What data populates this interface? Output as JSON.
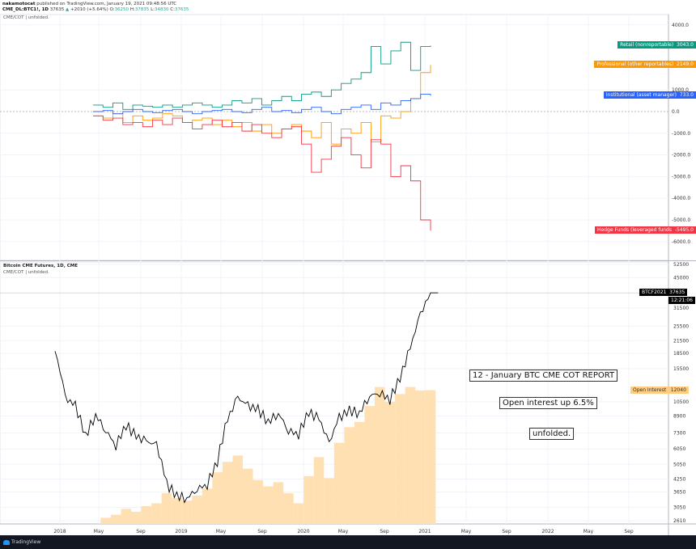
{
  "header": {
    "author": "nakamotocat",
    "published": "published on TradingView.com, January 19, 2021 09:48:56 UTC",
    "symbol": "CME_DL:BTC1!, 1D",
    "last": "37635",
    "change": "+2010 (+5.64%)",
    "o_label": "O:",
    "o": "36250",
    "h_label": "H:",
    "h": "37835",
    "l_label": "L:",
    "l": "34830",
    "c_label": "C:",
    "c": "37635"
  },
  "pane1": {
    "title": "CME/COT | unfolded.",
    "axis_ticks": [
      "4000.0",
      "1000.0",
      "0.0",
      "-1000.0",
      "-2000.0",
      "-3000.0",
      "-4000.0",
      "-5000.0",
      "-6000.0"
    ]
  },
  "pane2": {
    "title": "Bitcoin CME Futures, 1D, CME",
    "subtitle": "CME/COT | unfolded.",
    "axis_ticks": [
      "52500",
      "45000",
      "31500",
      "25500",
      "21500",
      "18500",
      "15500",
      "10500",
      "8900",
      "7300",
      "6050",
      "5050",
      "4250",
      "3650",
      "3050",
      "2610"
    ],
    "price_label": {
      "name": "BTCF2021",
      "value": "37635",
      "countdown": "12:21:06"
    },
    "oi_label": {
      "name": "Open Interest",
      "value": "12040"
    }
  },
  "notes": [
    "12 - January BTC CME COT REPORT",
    "Open interest up 6.5%",
    "unfolded."
  ],
  "x_ticks": [
    "2018",
    "May",
    "Sep",
    "2019",
    "May",
    "Sep",
    "2020",
    "May",
    "Sep",
    "2021",
    "May",
    "Sep",
    "2022",
    "May",
    "Sep"
  ],
  "footer": {
    "brand": "TradingView"
  },
  "chart_data": [
    {
      "type": "line",
      "title": "CME/COT",
      "x_start": "2018-03",
      "x_step": "1 month",
      "ylim": [
        -6500,
        4500
      ],
      "series": [
        {
          "name": "Retail (nonreportable)",
          "label_value": "3043.0",
          "color": "#089981",
          "values": [
            300,
            200,
            400,
            100,
            300,
            250,
            200,
            300,
            200,
            300,
            400,
            300,
            200,
            300,
            500,
            400,
            600,
            300,
            500,
            700,
            500,
            800,
            900,
            700,
            1000,
            1300,
            1500,
            1800,
            3000,
            2200,
            2800,
            3200,
            1900,
            3000,
            3043
          ]
        },
        {
          "name": "Professional (other reportables)",
          "label_value": "2149.0",
          "color": "#ff9800",
          "values": [
            -200,
            -300,
            -100,
            -500,
            -200,
            -400,
            -300,
            -100,
            -200,
            -500,
            -400,
            -300,
            -600,
            -400,
            -700,
            -500,
            -900,
            -600,
            -1000,
            -800,
            -600,
            -900,
            -1200,
            -500,
            -1500,
            -800,
            -1000,
            -500,
            -1400,
            -200,
            -300,
            0,
            600,
            1800,
            2149
          ]
        },
        {
          "name": "Institutional (asset manager)",
          "label_value": "733.0",
          "color": "#2962ff",
          "values": [
            0,
            50,
            -100,
            0,
            100,
            0,
            -50,
            50,
            100,
            0,
            -100,
            0,
            50,
            100,
            0,
            -50,
            100,
            200,
            0,
            50,
            -50,
            100,
            200,
            0,
            -100,
            100,
            200,
            300,
            100,
            400,
            300,
            500,
            600,
            800,
            733
          ]
        },
        {
          "name": "Hedge Funds (leveraged funds",
          "label_value": "-5495.0",
          "color": "#f23645",
          "values": [
            -200,
            -400,
            -300,
            -600,
            -500,
            -700,
            -400,
            -600,
            -300,
            -500,
            -800,
            -600,
            -400,
            -700,
            -500,
            -900,
            -600,
            -1000,
            -1200,
            -800,
            -700,
            -1500,
            -2800,
            -2200,
            -1600,
            -1200,
            -2000,
            -2600,
            -1300,
            -1500,
            -3000,
            -2500,
            -3200,
            -5000,
            -5495
          ]
        }
      ]
    },
    {
      "type": "line",
      "title": "Bitcoin CME Futures, 1D, CME",
      "x_start": "2017-12",
      "x_step": "1 month",
      "scale": "log",
      "ylim": [
        2500,
        55000
      ],
      "price": [
        19000,
        11000,
        10000,
        7000,
        9000,
        7500,
        6300,
        8000,
        7000,
        6600,
        6300,
        4000,
        3500,
        3400,
        3800,
        4000,
        5200,
        8500,
        11000,
        10000,
        9600,
        8300,
        9200,
        7500,
        7200,
        9300,
        8600,
        6400,
        8700,
        9500,
        9200,
        11300,
        11700,
        10800,
        13800,
        19500,
        29000,
        37635
      ],
      "open_interest": [
        0,
        0,
        0,
        0,
        0,
        2700,
        2800,
        3000,
        2900,
        3100,
        3200,
        3600,
        3400,
        3300,
        3500,
        3800,
        4600,
        5200,
        5600,
        4800,
        4200,
        3900,
        4100,
        3600,
        3200,
        4400,
        5500,
        4300,
        6500,
        7800,
        8300,
        10000,
        12500,
        10500,
        11500,
        12500,
        12000,
        12040
      ]
    }
  ]
}
